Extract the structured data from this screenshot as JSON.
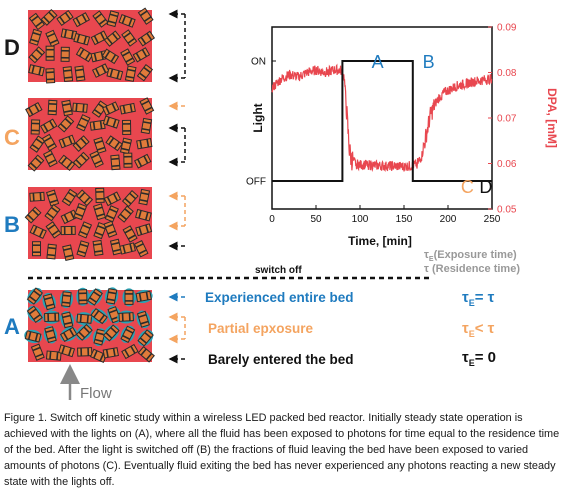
{
  "panels": {
    "D": {
      "letter": "D",
      "letter_color": "#1a1a1a"
    },
    "C": {
      "letter": "C",
      "letter_color": "#f4a460"
    },
    "B": {
      "letter": "B",
      "letter_color": "#1f7bbf"
    },
    "A": {
      "letter": "A",
      "letter_color": "#1f7bbf"
    }
  },
  "switch_off_label": "switch off",
  "flow_label": "Flow",
  "legend": {
    "tau_e_label": "τ",
    "tau_e_sub": "E",
    "tau_e_desc": "(Exposure time)",
    "tau_desc": "τ (Residence time)"
  },
  "annotations": [
    {
      "text": "Experienced entire bed",
      "color": "#1f7bbf",
      "rel_sub": "E",
      "rel_text": "= τ"
    },
    {
      "text": "Partial epxosure",
      "color": "#f4a460",
      "rel_sub": "E",
      "rel_text": "< τ"
    },
    {
      "text": "Barely entered the bed",
      "color": "#111111",
      "rel_sub": "E",
      "rel_text": "= 0"
    }
  ],
  "colors": {
    "bed_red": "#e8474f",
    "particle_orange": "#e07b3a",
    "particle_dark": "#2b2b2b",
    "exposed_blue": "#2aa3b5",
    "partial_orange": "#f4a460",
    "dpa_red": "#e8474f"
  },
  "chart_data": {
    "type": "line",
    "xlabel": "Time, [min]",
    "ylabel_left": "Light",
    "ylabel_right": "DPA, [mM]",
    "xlim": [
      0,
      250
    ],
    "x_ticks": [
      0,
      50,
      100,
      150,
      200,
      250
    ],
    "ylim_right": [
      0.05,
      0.09
    ],
    "y_ticks_right": [
      "0.05",
      "0.06",
      "0.07",
      "0.08",
      "0.09"
    ],
    "light_levels": [
      "OFF",
      "ON"
    ],
    "region_labels": [
      {
        "text": "A",
        "color": "#1f7bbf",
        "x": 120,
        "y": 0.081
      },
      {
        "text": "B",
        "color": "#1f7bbf",
        "x": 178,
        "y": 0.081
      },
      {
        "text": "C",
        "color": "#f4a460",
        "x": 222,
        "y": 0.0535
      },
      {
        "text": "D",
        "color": "#111111",
        "x": 243,
        "y": 0.0535
      }
    ],
    "series": [
      {
        "kind": "step",
        "axis": "left",
        "x": [
          0,
          80,
          80,
          160,
          160,
          250
        ],
        "y": [
          "OFF",
          "OFF",
          "ON",
          "ON",
          "OFF",
          "OFF"
        ]
      },
      {
        "kind": "line",
        "axis": "right",
        "x": [
          0,
          10,
          20,
          30,
          40,
          50,
          60,
          70,
          78,
          82,
          84,
          86,
          88,
          90,
          95,
          100,
          110,
          120,
          130,
          140,
          150,
          160,
          165,
          170,
          175,
          180,
          185,
          190,
          195,
          200,
          210,
          220,
          230,
          240,
          250
        ],
        "y": [
          0.0765,
          0.0785,
          0.0795,
          0.079,
          0.08,
          0.0805,
          0.08,
          0.0805,
          0.0805,
          0.079,
          0.074,
          0.068,
          0.063,
          0.061,
          0.06,
          0.0597,
          0.0597,
          0.0595,
          0.0594,
          0.0594,
          0.0593,
          0.0595,
          0.06,
          0.0615,
          0.066,
          0.0705,
          0.073,
          0.0745,
          0.0755,
          0.076,
          0.077,
          0.0775,
          0.078,
          0.0783,
          0.0787
        ]
      }
    ]
  },
  "caption": "Figure 1. Switch off kinetic study within a wireless LED packed bed reactor. Initially steady state operation is achieved with the lights on (A), where all the fluid has been exposed to photons for time equal to the residence time of the bed. After the light is switched off (B) the fractions of fluid leaving the bed have been exposed to varied amounts of photons (C).  Eventually fluid exiting the bed has never experienced any photons reacting a new steady state with the lights off."
}
